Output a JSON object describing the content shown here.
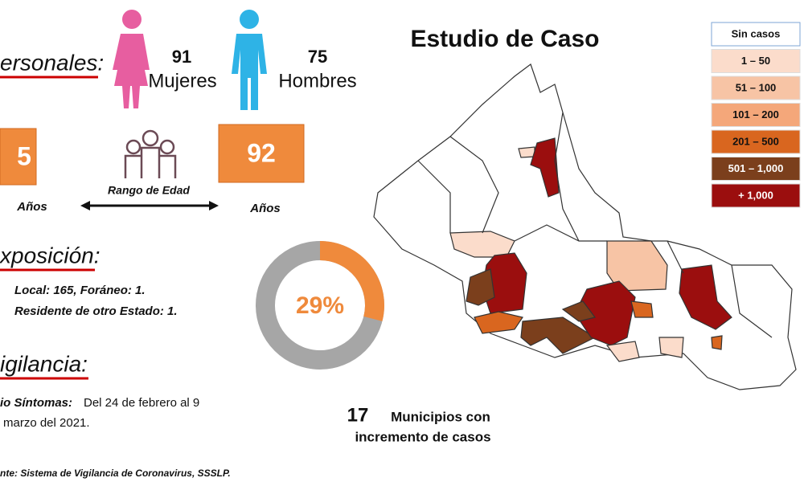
{
  "title": "Estudio de Caso",
  "personales": {
    "heading": "ersonales:",
    "mujeres": {
      "count": "91",
      "label": "Mujeres"
    },
    "hombres": {
      "count": "75",
      "label": "Hombres"
    }
  },
  "edad": {
    "min": "5",
    "min_unit": "Años",
    "max": "92",
    "max_unit": "Años",
    "label": "Rango de Edad"
  },
  "exposicion": {
    "heading": "xposición:",
    "lines": [
      "Local: 165, Foráneo: 1.",
      "Residente de otro Estado: 1."
    ]
  },
  "donut": {
    "value": 29,
    "label": "29%",
    "ylim": [
      0,
      100
    ]
  },
  "vigilancia": {
    "heading": "igilancia:",
    "bold": "io Síntomas:",
    "text": "Del 24 de febrero al 9",
    "text2": "marzo del 2021."
  },
  "municipios": {
    "count": "17",
    "line1": "Municipios con",
    "line2": "incremento de casos"
  },
  "legend": [
    "Sin casos",
    "1 – 50",
    "51 – 100",
    "101 – 200",
    "201 – 500",
    "501 – 1,000",
    "+ 1,000"
  ],
  "footer": "nte: Sistema de Vigilancia de Coronavirus, SSSLP."
}
